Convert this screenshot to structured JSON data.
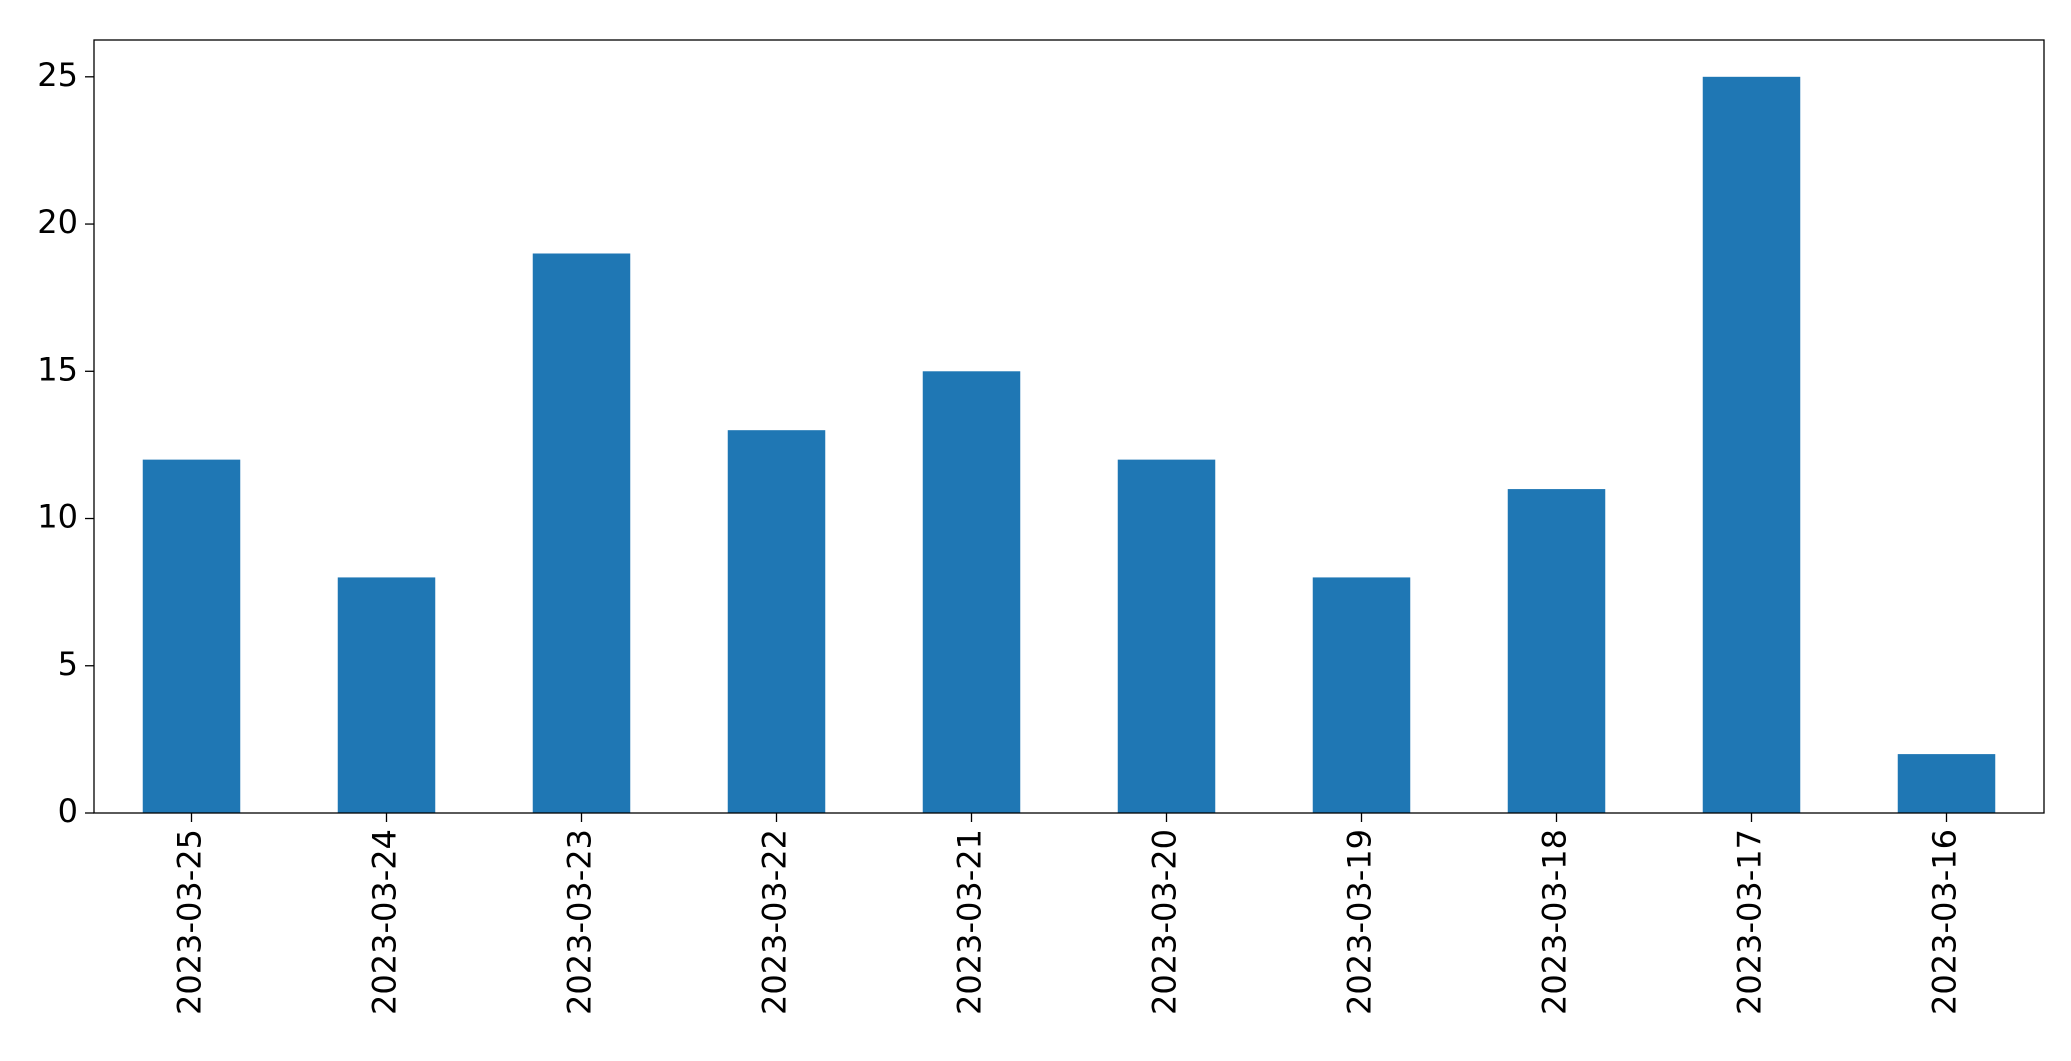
{
  "chart_data": {
    "type": "bar",
    "categories": [
      "2023-03-25",
      "2023-03-24",
      "2023-03-23",
      "2023-03-22",
      "2023-03-21",
      "2023-03-20",
      "2023-03-19",
      "2023-03-18",
      "2023-03-17",
      "2023-03-16"
    ],
    "values": [
      12,
      8,
      19,
      13,
      15,
      12,
      8,
      11,
      25,
      2
    ],
    "color": "#1f77b4",
    "ylim": [
      0,
      26.25
    ],
    "yticks": [
      0,
      5,
      10,
      15,
      20,
      25
    ],
    "grid": false
  }
}
